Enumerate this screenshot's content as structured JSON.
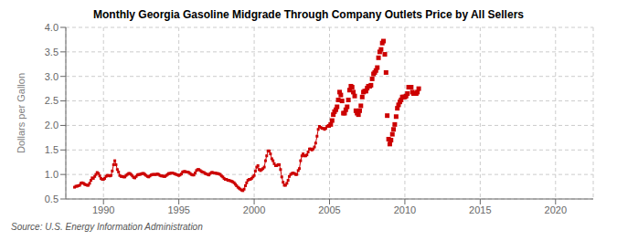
{
  "chart_data": {
    "type": "line",
    "title": "Monthly Georgia Gasoline Midgrade Through Company Outlets Price by All Sellers",
    "ylabel": "Dollars per Gallon",
    "annotations": [
      "Source: U.S. Energy Information Administration"
    ],
    "xlim": [
      1987.5,
      2022.5
    ],
    "ylim": [
      0.5,
      4.0
    ],
    "xticks": [
      1990,
      1995,
      2000,
      2005,
      2010,
      2015,
      2020
    ],
    "yticks": [
      0.5,
      {
        "value": 1.0,
        "label": "1.0"
      },
      1.5,
      {
        "value": 2.0,
        "label": "2.0"
      },
      2.5,
      {
        "value": 3.0,
        "label": "3.0"
      },
      3.5,
      {
        "value": 4.0,
        "label": "4.0"
      }
    ],
    "grid": true,
    "series": [
      {
        "type": "line",
        "marker": "square",
        "color": "#CC0000",
        "x": [
          1988.08,
          1988.17,
          1988.25,
          1988.33,
          1988.42,
          1988.5,
          1988.58,
          1988.67,
          1988.75,
          1988.83,
          1988.92,
          1989.0,
          1989.08,
          1989.17,
          1989.25,
          1989.33,
          1989.42,
          1989.5,
          1989.58,
          1989.67,
          1989.75,
          1989.83,
          1989.92,
          1990.0,
          1990.08,
          1990.17,
          1990.25,
          1990.33,
          1990.42,
          1990.5,
          1990.58,
          1990.67,
          1990.75,
          1990.83,
          1990.92,
          1991.0,
          1991.08,
          1991.17,
          1991.25,
          1991.33,
          1991.42,
          1991.5,
          1991.58,
          1991.67,
          1991.75,
          1991.83,
          1991.92,
          1992.0,
          1992.08,
          1992.17,
          1992.25,
          1992.33,
          1992.42,
          1992.5,
          1992.58,
          1992.67,
          1992.75,
          1992.83,
          1992.92,
          1993.0,
          1993.08,
          1993.17,
          1993.25,
          1993.33,
          1993.42,
          1993.5,
          1993.58,
          1993.67,
          1993.75,
          1993.83,
          1993.92,
          1994.0,
          1994.08,
          1994.17,
          1994.25,
          1994.33,
          1994.42,
          1994.5,
          1994.58,
          1994.67,
          1994.75,
          1994.83,
          1994.92,
          1995.0,
          1995.08,
          1995.17,
          1995.25,
          1995.33,
          1995.42,
          1995.5,
          1995.58,
          1995.67,
          1995.75,
          1995.83,
          1995.92,
          1996.0,
          1996.08,
          1996.17,
          1996.25,
          1996.33,
          1996.42,
          1996.5,
          1996.58,
          1996.67,
          1996.75,
          1996.83,
          1996.92,
          1997.0,
          1997.08,
          1997.17,
          1997.25,
          1997.33,
          1997.42,
          1997.5,
          1997.58,
          1997.67,
          1997.75,
          1997.83,
          1997.92,
          1998.0,
          1998.08,
          1998.17,
          1998.25,
          1998.33,
          1998.42,
          1998.5,
          1998.58,
          1998.67,
          1998.75,
          1998.83,
          1998.92,
          1999.0,
          1999.08,
          1999.17,
          1999.25,
          1999.33,
          1999.42,
          1999.5,
          1999.58,
          1999.67,
          1999.75,
          1999.83,
          1999.92,
          2000.0,
          2000.08,
          2000.17,
          2000.25,
          2000.33,
          2000.42,
          2000.5,
          2000.58,
          2000.67,
          2000.75,
          2000.83,
          2000.92,
          2001.0,
          2001.08,
          2001.17,
          2001.25,
          2001.33,
          2001.42,
          2001.5,
          2001.58,
          2001.67,
          2001.75,
          2001.83,
          2001.92,
          2002.0,
          2002.08,
          2002.17,
          2002.25,
          2002.33,
          2002.42,
          2002.5,
          2002.58,
          2002.67,
          2002.75,
          2002.83,
          2002.92,
          2003.0,
          2003.08,
          2003.17,
          2003.25,
          2003.33,
          2003.42,
          2003.5,
          2003.58,
          2003.67,
          2003.75,
          2003.83,
          2003.92,
          2004.0,
          2004.08,
          2004.17,
          2004.25,
          2004.33,
          2004.42,
          2004.5,
          2004.58,
          2004.67,
          2004.75,
          2004.83,
          2004.92,
          2005.0
        ],
        "values": [
          0.74,
          0.76,
          0.76,
          0.77,
          0.78,
          0.82,
          0.83,
          0.82,
          0.8,
          0.79,
          0.78,
          0.78,
          0.82,
          0.88,
          0.93,
          0.92,
          0.96,
          1.0,
          1.04,
          1.02,
          0.97,
          0.92,
          0.9,
          0.9,
          0.92,
          0.96,
          0.98,
          0.98,
          0.97,
          0.98,
          1.07,
          1.2,
          1.28,
          1.2,
          1.1,
          1.05,
          0.98,
          0.96,
          0.96,
          0.95,
          0.95,
          0.98,
          1.0,
          1.02,
          1.02,
          1.0,
          0.97,
          0.94,
          0.93,
          0.96,
          0.99,
          1.0,
          1.0,
          1.01,
          1.02,
          1.02,
          1.0,
          0.98,
          0.96,
          0.95,
          0.97,
          0.99,
          1.0,
          1.0,
          1.0,
          1.0,
          1.01,
          1.0,
          0.98,
          0.97,
          0.97,
          0.96,
          0.96,
          0.98,
          1.0,
          1.02,
          1.02,
          1.03,
          1.03,
          1.02,
          1.01,
          1.0,
          0.99,
          0.98,
          0.99,
          1.01,
          1.05,
          1.06,
          1.06,
          1.05,
          1.05,
          1.04,
          1.02,
          1.0,
          0.99,
          0.99,
          1.03,
          1.08,
          1.1,
          1.1,
          1.08,
          1.06,
          1.05,
          1.04,
          1.02,
          1.01,
          1.0,
          0.99,
          1.02,
          1.04,
          1.04,
          1.03,
          1.03,
          1.02,
          1.02,
          1.01,
          1.0,
          0.97,
          0.95,
          0.92,
          0.9,
          0.9,
          0.88,
          0.88,
          0.87,
          0.86,
          0.85,
          0.83,
          0.8,
          0.77,
          0.74,
          0.72,
          0.7,
          0.68,
          0.67,
          0.7,
          0.77,
          0.83,
          0.88,
          0.9,
          0.9,
          0.92,
          0.95,
          0.98,
          1.07,
          1.15,
          1.18,
          1.1,
          1.08,
          1.1,
          1.12,
          1.15,
          1.28,
          1.38,
          1.48,
          1.48,
          1.42,
          1.32,
          1.28,
          1.22,
          1.18,
          1.18,
          1.2,
          1.2,
          1.1,
          0.95,
          0.84,
          0.78,
          0.78,
          0.82,
          0.88,
          0.96,
          1.0,
          1.02,
          1.03,
          1.02,
          1.0,
          1.0,
          1.08,
          1.12,
          1.28,
          1.38,
          1.42,
          1.38,
          1.38,
          1.4,
          1.46,
          1.52,
          1.52,
          1.5,
          1.52,
          1.56,
          1.64,
          1.78,
          1.92,
          1.98,
          1.96,
          1.94,
          1.94,
          1.92,
          1.94,
          1.98,
          2.0,
          1.98
        ]
      },
      {
        "type": "scatter",
        "marker": "square",
        "color": "#CC0000",
        "x": [
          2005.08,
          2005.17,
          2005.25,
          2005.33,
          2005.42,
          2005.5,
          2005.58,
          2005.67,
          2005.75,
          2005.83,
          2005.92,
          2006.0,
          2006.08,
          2006.17,
          2006.25,
          2006.33,
          2006.42,
          2006.5,
          2006.58,
          2006.67,
          2006.75,
          2006.83,
          2006.92,
          2007.0,
          2007.08,
          2007.17,
          2007.25,
          2007.33,
          2007.42,
          2007.5,
          2007.58,
          2007.67,
          2007.75,
          2007.83,
          2007.92,
          2008.0,
          2008.08,
          2008.17,
          2008.25,
          2008.33,
          2008.42,
          2008.5,
          2008.58,
          2008.67,
          2008.75,
          2008.83,
          2008.92,
          2009.0,
          2009.08,
          2009.17,
          2009.25,
          2009.33,
          2009.42,
          2009.5,
          2009.58,
          2009.67,
          2009.75,
          2009.83,
          2009.92,
          2010.0,
          2010.08,
          2010.17,
          2010.25,
          2010.33,
          2010.42,
          2010.5,
          2010.58,
          2010.67,
          2010.75,
          2010.83,
          2010.92
        ],
        "values": [
          2.02,
          2.1,
          2.22,
          2.28,
          2.32,
          2.38,
          2.52,
          2.68,
          2.62,
          2.5,
          2.25,
          2.25,
          2.32,
          2.38,
          2.52,
          2.72,
          2.8,
          2.78,
          2.68,
          2.6,
          2.3,
          2.25,
          2.22,
          2.3,
          2.4,
          2.58,
          2.68,
          2.7,
          2.7,
          2.76,
          2.8,
          2.8,
          2.82,
          2.95,
          3.05,
          3.08,
          3.12,
          3.18,
          3.38,
          3.5,
          3.55,
          3.68,
          3.72,
          3.45,
          3.08,
          2.2,
          1.72,
          1.62,
          1.7,
          1.82,
          1.92,
          2.02,
          2.18,
          2.35,
          2.42,
          2.48,
          2.52,
          2.58,
          2.58,
          2.58,
          2.6,
          2.65,
          2.78,
          2.78,
          2.78,
          2.68,
          2.65,
          2.65,
          2.65,
          2.68,
          2.75
        ]
      }
    ]
  }
}
